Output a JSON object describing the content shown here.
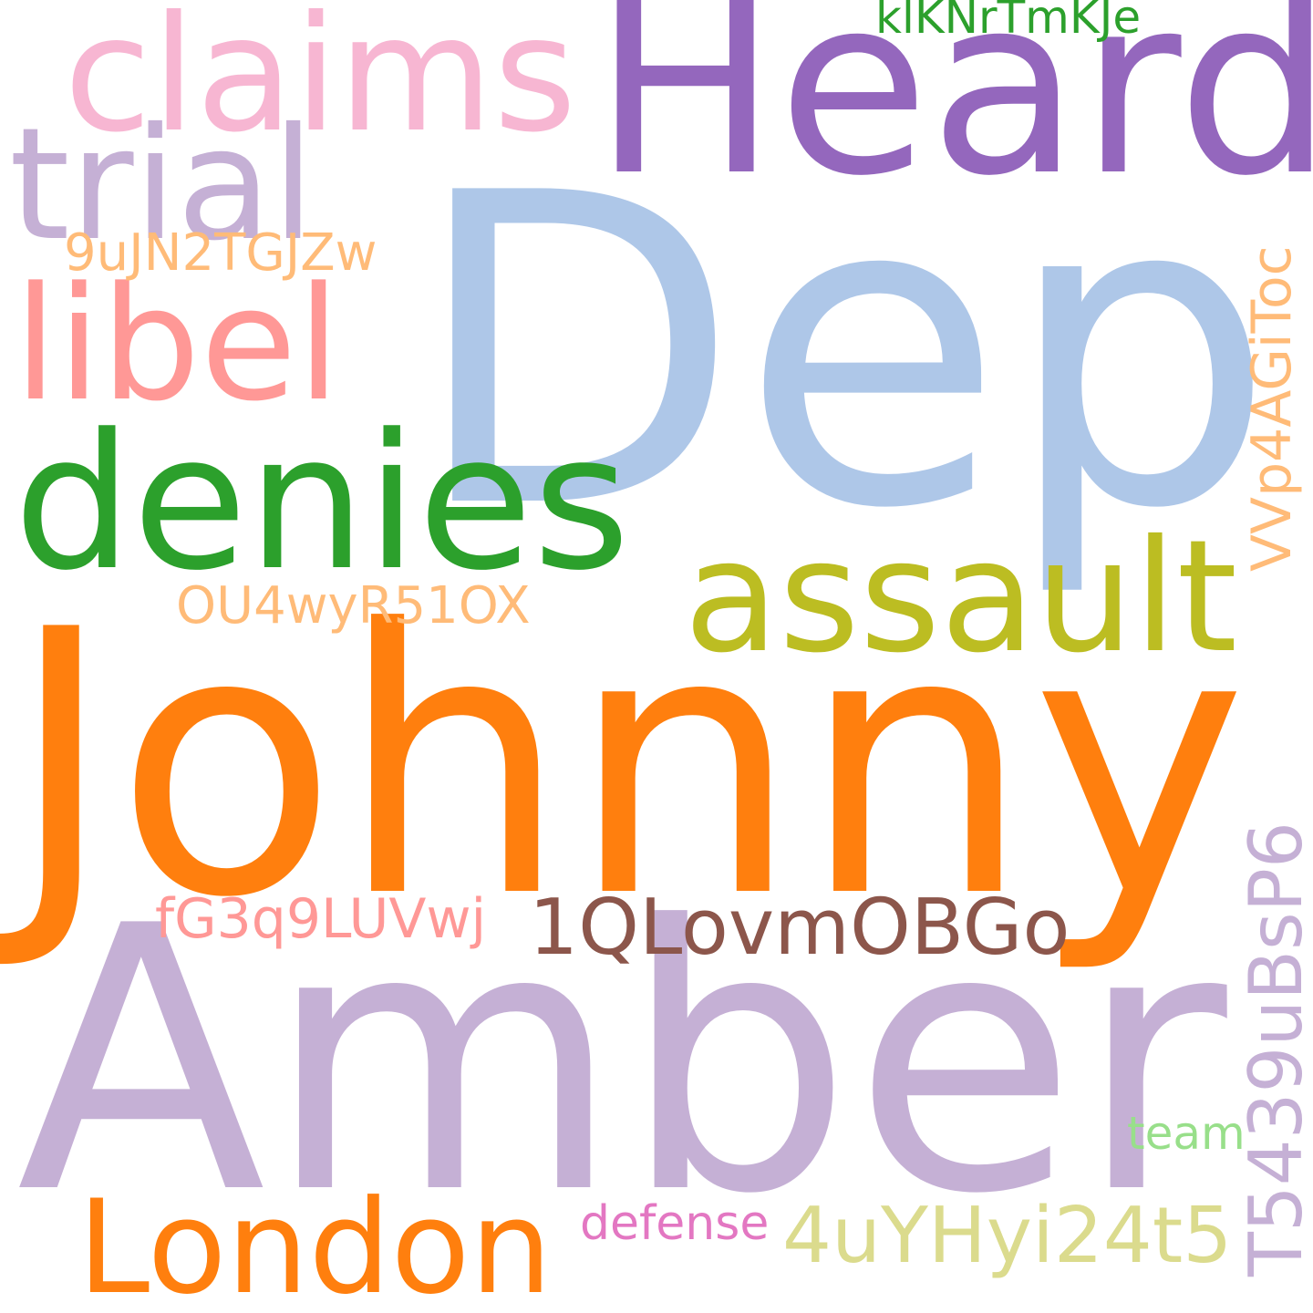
{
  "word_cloud": {
    "words": [
      {
        "id": "johnny",
        "text": "Johnny",
        "color": "#ff7f0e"
      },
      {
        "id": "amber",
        "text": "Amber",
        "color": "#c5b0d5"
      },
      {
        "id": "depp",
        "text": "Depp",
        "color": "#aec7e8"
      },
      {
        "id": "heard",
        "text": "Heard",
        "color": "#9467bd"
      },
      {
        "id": "claims",
        "text": "claims",
        "color": "#f7b6d2"
      },
      {
        "id": "trial",
        "text": "trial",
        "color": "#c5b0d5"
      },
      {
        "id": "libel",
        "text": "libel",
        "color": "#ff9896"
      },
      {
        "id": "denies",
        "text": "denies",
        "color": "#2ca02c"
      },
      {
        "id": "assault",
        "text": "assault",
        "color": "#bcbd22"
      },
      {
        "id": "london",
        "text": "London",
        "color": "#ff7f0e"
      },
      {
        "id": "code1",
        "text": "1QLovmOBGo",
        "color": "#8c564b"
      },
      {
        "id": "code2",
        "text": "4uYHyi24t5",
        "color": "#dbdb8d"
      },
      {
        "id": "code3",
        "text": "T5439uBsP6",
        "color": "#c5b0d5"
      },
      {
        "id": "code4",
        "text": "VVp4AGiToc",
        "color": "#ffbb78"
      },
      {
        "id": "code5",
        "text": "9uJN2TGJZw",
        "color": "#ffbb78"
      },
      {
        "id": "code6",
        "text": "OU4wyR51OX",
        "color": "#ffbb78"
      },
      {
        "id": "code7",
        "text": "fG3q9LUVwj",
        "color": "#ff9896"
      },
      {
        "id": "code8",
        "text": "klKNrTmKJe",
        "color": "#2ca02c"
      },
      {
        "id": "team",
        "text": "team",
        "color": "#98df8a"
      },
      {
        "id": "defense",
        "text": "defense",
        "color": "#e377c2"
      }
    ]
  }
}
